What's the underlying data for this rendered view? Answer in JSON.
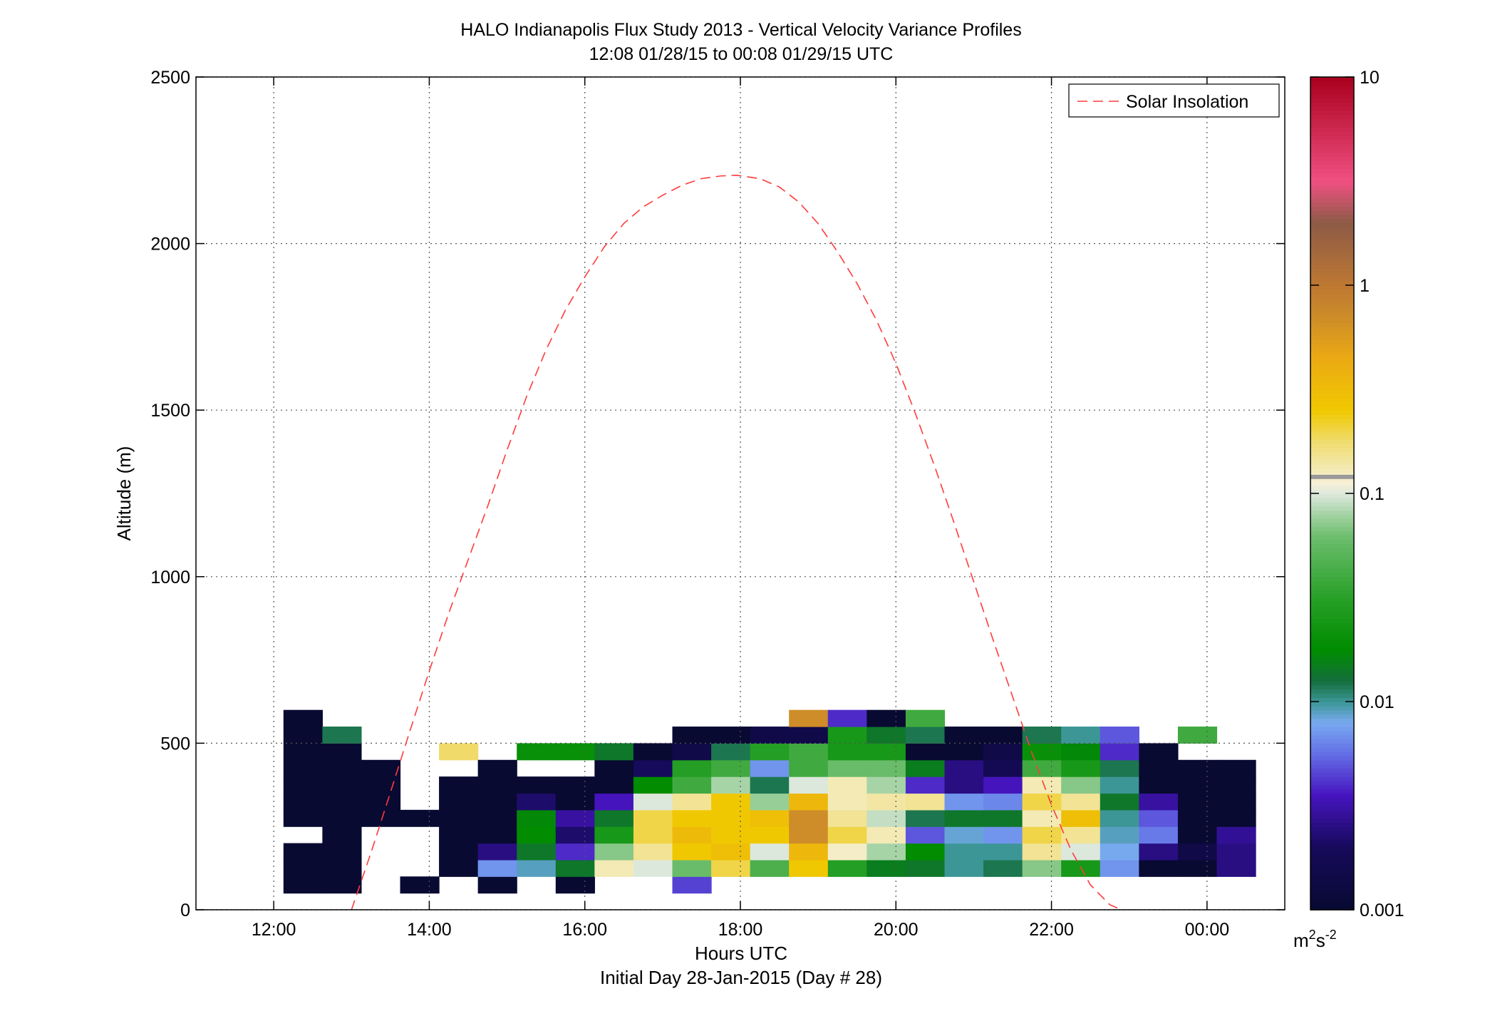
{
  "chart_data": {
    "type": "heatmap",
    "title": "HALO Indianapolis Flux Study 2013 - Vertical Velocity Variance Profiles",
    "subtitle": "12:08 01/28/15 to 00:08 01/29/15  UTC",
    "xlabel": "Hours UTC",
    "xlabel2": "Initial Day 28-Jan-2015 (Day # 28)",
    "ylabel": "Altitude (m)",
    "colorbar_label_base": "m",
    "colorbar_label_sup1": "2",
    "colorbar_label_mid": "s",
    "colorbar_label_sup2": "-2",
    "xlim": [
      11,
      25
    ],
    "ylim": [
      0,
      2500
    ],
    "x_ticks": [
      12,
      14,
      16,
      18,
      20,
      22,
      24
    ],
    "x_tick_labels": [
      "12:00",
      "14:00",
      "16:00",
      "18:00",
      "20:00",
      "22:00",
      "00:00"
    ],
    "y_ticks": [
      0,
      500,
      1000,
      1500,
      2000,
      2500
    ],
    "y_tick_labels": [
      "0",
      "500",
      "1000",
      "1500",
      "2000",
      "2500"
    ],
    "colorbar_scale": "log",
    "colorbar_range": [
      0.001,
      10
    ],
    "colorbar_ticks": [
      0.001,
      0.01,
      0.1,
      1,
      10
    ],
    "colorbar_tick_labels": [
      "0.001",
      "0.01",
      "0.1",
      "1",
      "10"
    ],
    "grid": true,
    "legend_position": "top-right",
    "legend_entries": [
      "Solar Insolation"
    ],
    "heatmap": {
      "x_start": 12.125,
      "dx": 0.5,
      "y_start": 50,
      "dy": 50,
      "columns": [
        [
          0.001,
          0.001,
          0.001,
          null,
          0.001,
          0.001,
          0.001,
          0.001,
          0.001,
          0.001,
          0.001
        ],
        [
          0.001,
          0.001,
          0.001,
          0.001,
          0.001,
          0.001,
          0.001,
          0.001,
          0.001,
          0.012,
          null
        ],
        [
          null,
          null,
          null,
          null,
          0.001,
          0.001,
          0.001,
          0.001,
          null,
          null,
          null
        ],
        [
          0.001,
          null,
          null,
          null,
          0.001,
          null,
          null,
          null,
          null,
          null,
          null
        ],
        [
          null,
          0.001,
          0.001,
          0.001,
          0.001,
          0.001,
          0.001,
          null,
          0.18,
          null,
          null
        ],
        [
          0.001,
          0.007,
          0.0025,
          0.001,
          0.001,
          0.001,
          0.001,
          0.001,
          null,
          null,
          null
        ],
        [
          null,
          0.009,
          0.014,
          0.018,
          0.017,
          0.0022,
          0.001,
          null,
          0.02,
          null,
          null
        ],
        [
          0.001,
          0.014,
          0.004,
          0.0022,
          0.003,
          0.001,
          0.001,
          null,
          0.02,
          null,
          null
        ],
        [
          null,
          0.13,
          0.07,
          0.025,
          0.014,
          0.0035,
          0.001,
          0.001,
          0.014,
          null,
          null
        ],
        [
          null,
          0.1,
          0.15,
          0.2,
          0.2,
          0.1,
          0.018,
          0.002,
          0.001,
          null,
          null
        ],
        [
          0.0045,
          0.06,
          0.25,
          0.33,
          0.25,
          0.15,
          0.04,
          0.03,
          0.0015,
          0.001,
          null
        ],
        [
          null,
          0.2,
          0.3,
          0.25,
          0.25,
          0.25,
          0.08,
          0.04,
          0.012,
          0.001,
          null
        ],
        [
          null,
          0.045,
          0.1,
          0.25,
          0.3,
          0.075,
          0.012,
          0.007,
          0.03,
          0.0015,
          null
        ],
        [
          null,
          0.25,
          0.35,
          0.7,
          0.7,
          0.35,
          0.1,
          0.04,
          0.04,
          0.0015,
          0.7
        ],
        [
          null,
          0.03,
          0.12,
          0.2,
          0.15,
          0.13,
          0.13,
          0.06,
          0.025,
          0.025,
          0.004
        ],
        [
          null,
          0.015,
          0.08,
          0.13,
          0.09,
          0.14,
          0.08,
          0.06,
          0.025,
          0.014,
          0.001
        ],
        [
          null,
          0.014,
          0.018,
          0.005,
          0.012,
          0.15,
          0.004,
          0.015,
          0.001,
          0.012,
          0.04
        ],
        [
          null,
          0.01,
          0.01,
          0.0085,
          0.014,
          0.007,
          0.0025,
          0.0025,
          0.001,
          0.001,
          null
        ],
        [
          null,
          0.012,
          0.01,
          0.007,
          0.014,
          0.0065,
          0.0035,
          0.0018,
          0.0015,
          0.001,
          null
        ],
        [
          null,
          0.07,
          0.15,
          0.2,
          0.13,
          0.2,
          0.13,
          0.04,
          0.02,
          0.012,
          null
        ],
        [
          null,
          0.025,
          0.1,
          0.15,
          0.3,
          0.15,
          0.07,
          0.025,
          0.017,
          0.01,
          null
        ],
        [
          null,
          0.007,
          0.008,
          0.009,
          0.01,
          0.014,
          0.01,
          0.012,
          0.004,
          0.005,
          null
        ],
        [
          null,
          0.001,
          0.0025,
          0.006,
          0.005,
          0.003,
          0.001,
          0.001,
          0.001,
          null,
          null
        ],
        [
          null,
          0.001,
          0.0015,
          0.001,
          0.001,
          0.001,
          0.001,
          0.001,
          null,
          0.04,
          null
        ],
        [
          null,
          0.0025,
          0.0025,
          0.0028,
          0.001,
          0.001,
          0.001,
          0.001,
          null,
          null,
          null
        ]
      ]
    },
    "series": [
      {
        "name": "Solar Insolation",
        "type": "line",
        "style": "dashed",
        "color": "#ff3b3b",
        "x": [
          13.0,
          13.25,
          13.5,
          13.75,
          14.0,
          14.25,
          14.5,
          14.75,
          15.0,
          15.25,
          15.5,
          15.75,
          16.0,
          16.25,
          16.5,
          16.75,
          17.0,
          17.25,
          17.5,
          17.75,
          17.95,
          18.25,
          18.5,
          18.75,
          19.0,
          19.25,
          19.5,
          19.75,
          20.0,
          20.25,
          20.5,
          20.75,
          21.0,
          21.25,
          21.5,
          21.75,
          22.0,
          22.25,
          22.5,
          22.75,
          22.9
        ],
        "y": [
          0,
          171,
          352,
          536,
          717,
          890,
          1051,
          1211,
          1380,
          1540,
          1680,
          1800,
          1900,
          1990,
          2060,
          2110,
          2145,
          2175,
          2195,
          2203,
          2205,
          2195,
          2170,
          2125,
          2060,
          1975,
          1880,
          1770,
          1640,
          1490,
          1330,
          1160,
          985,
          810,
          640,
          470,
          315,
          180,
          75,
          15,
          0
        ]
      }
    ]
  }
}
